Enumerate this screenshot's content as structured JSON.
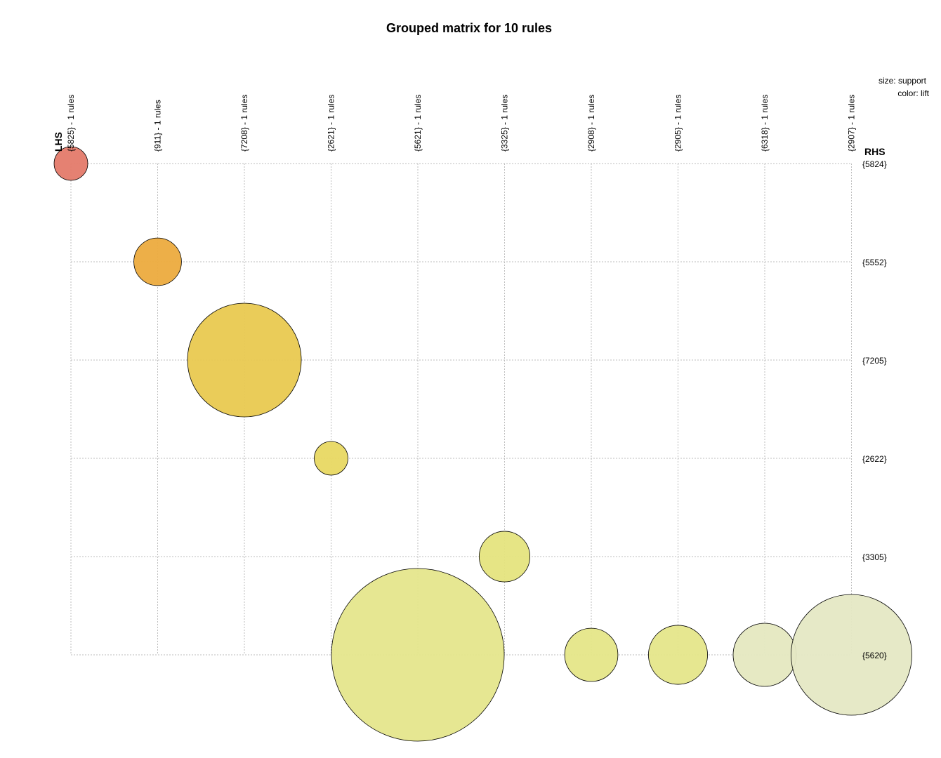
{
  "chart_data": {
    "type": "scatter",
    "title": "Grouped matrix for 10 rules",
    "lhs_label": "LHS",
    "rhs_label": "RHS",
    "legend": {
      "size": "size: support",
      "color": "color: lift",
      "placement": "top-right"
    },
    "grid": true,
    "lhs_groups": [
      "{5825} - 1 rules",
      "{911} - 1 rules",
      "{7208} - 1 rules",
      "{2621} - 1 rules",
      "{5621} - 1 rules",
      "{3325} - 1 rules",
      "{2908} - 1 rules",
      "{2905} - 1 rules",
      "{6318} - 1 rules",
      "{2907} - 1 rules"
    ],
    "rhs_items": [
      "{5824}",
      "{5552}",
      "{7205}",
      "{2622}",
      "{3305}",
      "{5620}"
    ],
    "points": [
      {
        "lhs": 0,
        "rhs": 0,
        "relative_support": 0.038,
        "color": "#e47a6a"
      },
      {
        "lhs": 1,
        "rhs": 1,
        "relative_support": 0.076,
        "color": "#ecab3e"
      },
      {
        "lhs": 2,
        "rhs": 2,
        "relative_support": 0.434,
        "color": "#e9c950"
      },
      {
        "lhs": 3,
        "rhs": 3,
        "relative_support": 0.038,
        "color": "#e8d862"
      },
      {
        "lhs": 4,
        "rhs": 5,
        "relative_support": 1.0,
        "color": "#e5e68c"
      },
      {
        "lhs": 5,
        "rhs": 4,
        "relative_support": 0.086,
        "color": "#e5e47e"
      },
      {
        "lhs": 6,
        "rhs": 5,
        "relative_support": 0.095,
        "color": "#e5e688"
      },
      {
        "lhs": 7,
        "rhs": 5,
        "relative_support": 0.117,
        "color": "#e5e68a"
      },
      {
        "lhs": 8,
        "rhs": 5,
        "relative_support": 0.134,
        "color": "#e5e8c0"
      },
      {
        "lhs": 9,
        "rhs": 5,
        "relative_support": 0.489,
        "color": "#e5e8c4"
      }
    ]
  }
}
